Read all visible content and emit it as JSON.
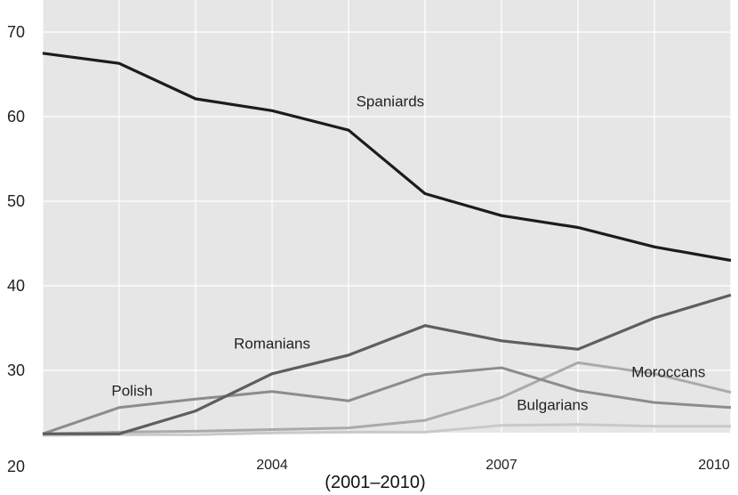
{
  "chart_data": {
    "type": "line",
    "title": "",
    "caption": "(2001–2010)",
    "xlabel": "",
    "ylabel": "",
    "x": [
      2001,
      2002,
      2003,
      2004,
      2005,
      2006,
      2007,
      2008,
      2009,
      2010
    ],
    "x_tick_labels": [
      "2004",
      "2007",
      "2010"
    ],
    "y_tick_labels": [
      "20",
      "30",
      "40",
      "50",
      "60",
      "70"
    ],
    "ylim": [
      20,
      70
    ],
    "xlim": [
      2001,
      2010
    ],
    "grid": true,
    "background": "#e6e6e6",
    "series": [
      {
        "name": "Spaniards",
        "color": "#1c1c1c",
        "width": 3.2,
        "values": [
          67.5,
          66.3,
          62.1,
          60.7,
          58.4,
          50.9,
          48.3,
          46.9,
          44.6,
          43.0
        ]
      },
      {
        "name": "Romanians",
        "color": "#5e5e5e",
        "width": 3.2,
        "values": [
          22.5,
          22.5,
          25.2,
          29.6,
          31.8,
          35.3,
          33.5,
          32.5,
          36.2,
          38.9
        ]
      },
      {
        "name": "Polish",
        "color": "#8c8c8c",
        "width": 3.0,
        "values": [
          22.5,
          25.6,
          26.6,
          27.5,
          26.4,
          29.5,
          30.3,
          27.6,
          26.2,
          25.6
        ]
      },
      {
        "name": "Moroccans",
        "color": "#aaaaaa",
        "width": 3.0,
        "values": [
          22.5,
          22.7,
          22.8,
          23.0,
          23.2,
          24.1,
          26.8,
          30.9,
          29.6,
          27.4
        ]
      },
      {
        "name": "Bulgarians",
        "color": "#c9c9c9",
        "width": 3.0,
        "values": [
          22.3,
          22.4,
          22.4,
          22.6,
          22.7,
          22.7,
          23.5,
          23.6,
          23.4,
          23.4
        ]
      }
    ],
    "annotations": [
      {
        "text": "Spaniards",
        "x": 2005.1,
        "y": 61.2,
        "series": "Spaniards"
      },
      {
        "text": "Romanians",
        "x": 2003.5,
        "y": 32.6,
        "series": "Romanians"
      },
      {
        "text": "Polish",
        "x": 2001.9,
        "y": 27.0,
        "series": "Polish"
      },
      {
        "text": "Bulgarians",
        "x": 2007.2,
        "y": 25.3,
        "series": "Bulgarians"
      },
      {
        "text": "Moroccans",
        "x": 2008.7,
        "y": 29.2,
        "series": "Moroccans"
      }
    ]
  }
}
